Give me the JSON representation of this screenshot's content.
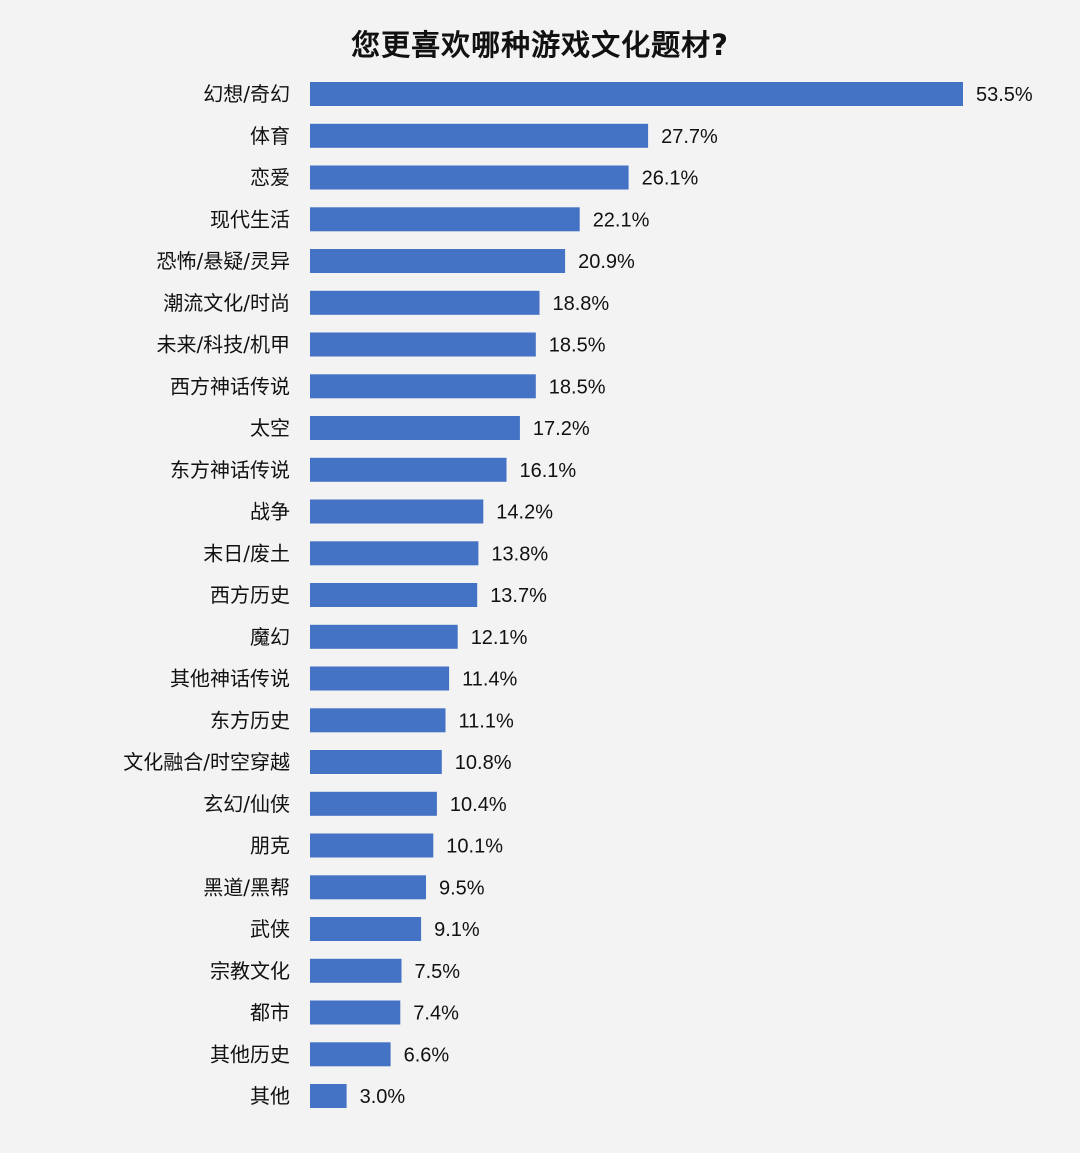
{
  "chart_data": {
    "type": "bar",
    "orientation": "horizontal",
    "title": "您更喜欢哪种游戏文化题材?",
    "categories": [
      "幻想/奇幻",
      "体育",
      "恋爱",
      "现代生活",
      "恐怖/悬疑/灵异",
      "潮流文化/时尚",
      "未来/科技/机甲",
      "西方神话传说",
      "太空",
      "东方神话传说",
      "战争",
      "末日/废土",
      "西方历史",
      "魔幻",
      "其他神话传说",
      "东方历史",
      "文化融合/时空穿越",
      "玄幻/仙侠",
      "朋克",
      "黑道/黑帮",
      "武侠",
      "宗教文化",
      "都市",
      "其他历史",
      "其他"
    ],
    "values": [
      53.5,
      27.7,
      26.1,
      22.1,
      20.9,
      18.8,
      18.5,
      18.5,
      17.2,
      16.1,
      14.2,
      13.8,
      13.7,
      12.1,
      11.4,
      11.1,
      10.8,
      10.4,
      10.1,
      9.5,
      9.1,
      7.5,
      7.4,
      6.6,
      3.0
    ],
    "value_labels": [
      "53.5%",
      "27.7%",
      "26.1%",
      "22.1%",
      "20.9%",
      "18.8%",
      "18.5%",
      "18.5%",
      "17.2%",
      "16.1%",
      "14.2%",
      "13.8%",
      "13.7%",
      "12.1%",
      "11.4%",
      "11.1%",
      "10.8%",
      "10.4%",
      "10.1%",
      "9.5%",
      "9.1%",
      "7.5%",
      "7.4%",
      "6.6%",
      "3.0%"
    ],
    "unit": "%",
    "xlim": [
      0,
      53.5
    ],
    "grid": false,
    "legend": "none",
    "bar_color": "#4472c4",
    "background_color": "#f3f3f3"
  }
}
